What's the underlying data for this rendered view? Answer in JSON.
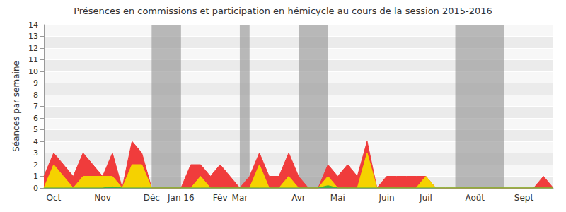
{
  "chart_data": {
    "type": "line",
    "title": "Présences en commissions et participation en hémicycle au cours de la session 2015-2016",
    "y_label": "Séances par semaine",
    "categories": [
      null,
      "Oct",
      null,
      null,
      null,
      null,
      "Nov",
      null,
      null,
      null,
      null,
      "Déc",
      null,
      null,
      "Jan 16",
      null,
      null,
      null,
      "Fév",
      null,
      "Mar",
      null,
      null,
      null,
      null,
      null,
      "Avr",
      null,
      null,
      null,
      "Mai",
      null,
      null,
      null,
      null,
      "Juin",
      null,
      null,
      null,
      "Juil",
      null,
      null,
      null,
      null,
      "Août",
      null,
      null,
      null,
      null,
      "Sept",
      null,
      null,
      null
    ],
    "series": [
      {
        "color": "#f03c3c",
        "values": [
          1,
          3,
          2,
          1,
          3,
          2,
          1,
          3,
          0,
          4,
          3,
          0,
          0,
          0,
          0,
          2,
          2,
          1,
          2,
          1,
          0,
          1,
          3,
          1,
          1,
          3,
          1,
          0,
          0,
          2,
          1,
          2,
          1,
          4,
          0,
          1,
          1,
          1,
          1,
          1,
          0,
          0,
          0,
          0,
          0,
          0,
          0,
          0,
          0,
          0,
          0,
          1,
          0
        ]
      },
      {
        "color": "#f5d200",
        "values": [
          0,
          2,
          1,
          0,
          1,
          1,
          1,
          1,
          0,
          2,
          2,
          0,
          0,
          0,
          0,
          0,
          1,
          0,
          0,
          0,
          0,
          0,
          2,
          0,
          0,
          1,
          0,
          0,
          0,
          1,
          0,
          0,
          0,
          3,
          0,
          0,
          0,
          0,
          0,
          1,
          0,
          0,
          0,
          0,
          0,
          0,
          0,
          0,
          0,
          0,
          0,
          0,
          0
        ]
      },
      {
        "color": "#3cb43c",
        "values": [
          0,
          0,
          0,
          0,
          0,
          0,
          0,
          0.1,
          0,
          0,
          0,
          0,
          0,
          0,
          0,
          0,
          0,
          0,
          0,
          0,
          0,
          0,
          0,
          0,
          0,
          0,
          0,
          0,
          0,
          0.2,
          0,
          0,
          0,
          0,
          0,
          0,
          0,
          0,
          0,
          0,
          0,
          0,
          0,
          0,
          0,
          0,
          0,
          0,
          0,
          0,
          0,
          0,
          0
        ]
      }
    ],
    "shaded_periods": [
      [
        11,
        14
      ],
      [
        20,
        21
      ],
      [
        26,
        29
      ],
      [
        42,
        47
      ]
    ],
    "ylim": [
      0,
      14
    ],
    "yticks": [
      0,
      1,
      2,
      3,
      4,
      5,
      6,
      7,
      8,
      9,
      10,
      11,
      12,
      13,
      14
    ],
    "grid": true,
    "stacked": false
  }
}
